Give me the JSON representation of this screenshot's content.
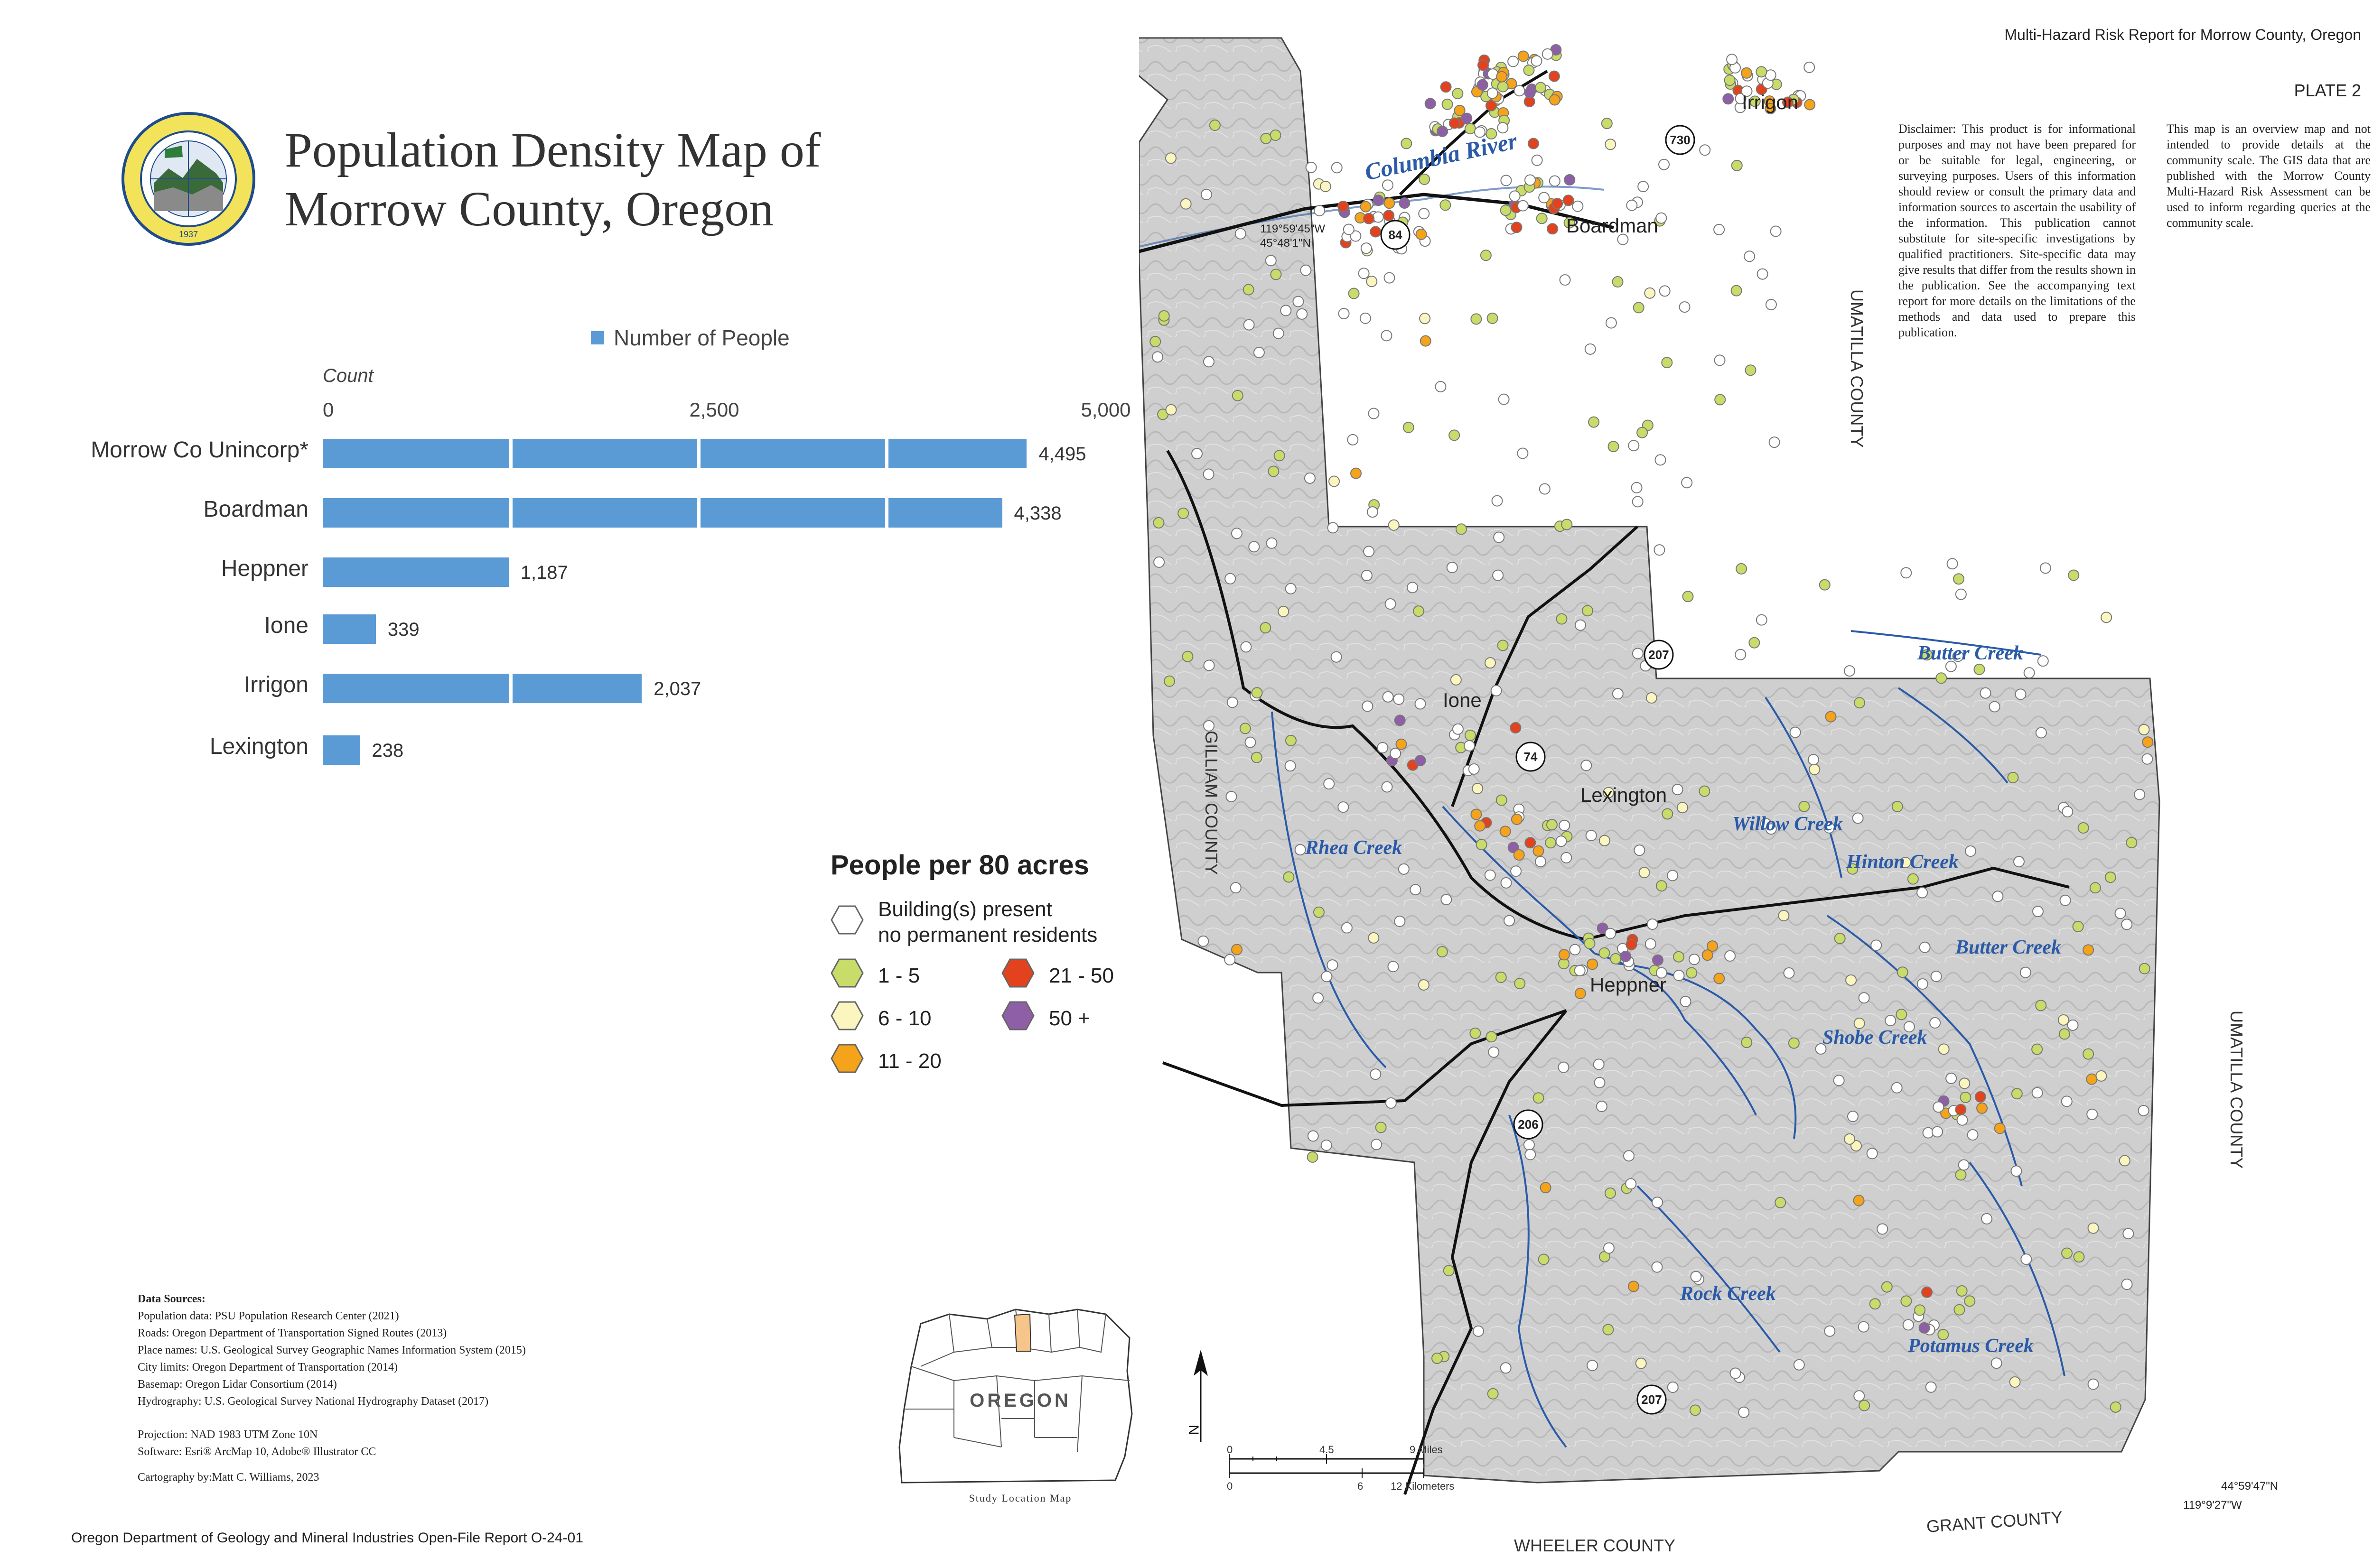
{
  "header": {
    "title_line1": "Population Density Map of",
    "title_line2": "Morrow County, Oregon",
    "report_title": "Multi-Hazard Risk Report for Morrow County, Oregon",
    "plate": "PLATE 2"
  },
  "seal": {
    "text": "OREGON DEPARTMENT OF GEOLOGY AND MINERAL INDUSTRIES",
    "year": "1937"
  },
  "chart_data": {
    "type": "bar",
    "orientation": "horizontal",
    "legend": "Number of People",
    "axis_title": "Count",
    "ticks": [
      "0",
      "2,500",
      "5,000"
    ],
    "xlim": [
      0,
      5000
    ],
    "categories": [
      "Morrow Co Unincorp*",
      "Boardman",
      "Heppner",
      "Ione",
      "Irrigon",
      "Lexington"
    ],
    "values": [
      4495,
      4338,
      1187,
      339,
      2037,
      238
    ],
    "value_labels": [
      "4,495",
      "4,338",
      "1,187",
      "339",
      "2,037",
      "238"
    ],
    "gridlines": [
      1200,
      2400,
      3600
    ]
  },
  "density_legend": {
    "title": "People per 80 acres",
    "items": [
      {
        "label_line1": "Building(s) present",
        "label_line2": "no permanent residents",
        "color": "#ffffff"
      },
      {
        "label": "1 - 5",
        "color": "#c8dc6a"
      },
      {
        "label": "6 - 10",
        "color": "#fbf6c0"
      },
      {
        "label": "11 - 20",
        "color": "#f5a31b"
      },
      {
        "label": "21 - 50",
        "color": "#e2431e"
      },
      {
        "label": "50 +",
        "color": "#8e5fa6"
      }
    ]
  },
  "sources": {
    "heading": "Data Sources:",
    "lines": [
      "Population data: PSU Population Research Center (2021)",
      "Roads: Oregon Department of Transportation Signed Routes (2013)",
      "Place names: U.S. Geological Survey Geographic Names Information System (2015)",
      "City limits: Oregon Department of Transportation (2014)",
      "Basemap: Oregon Lidar Consortium (2014)",
      "Hydrography: U.S. Geological Survey National Hydrography Dataset (2017)"
    ],
    "projection": "Projection: NAD 1983 UTM Zone 10N",
    "software": "Software: Esri® ArcMap 10, Adobe® Illustrator CC",
    "cartography": "Cartography by:Matt C. Williams, 2023"
  },
  "footer": "Oregon Department of Geology and Mineral Industries Open-File Report O-24-01",
  "inset": {
    "state_label": "OREGON",
    "caption": "Study Location Map",
    "highlight_color": "#f6c58a"
  },
  "disclaimer": "Disclaimer: This product is for informational purposes and may not have been prepared for or be suitable for legal, engineering, or surveying purposes. Users of this information should review or consult the primary data and information sources to ascertain the usability of the information. This publication cannot substitute for site-specific investigations by qualified practitioners. Site-specific data may give results that differ from the results shown in the publication. See the accompanying text report for more details on the limitations of the methods and data used to prepare this publication.",
  "overview_note": "This map is an overview map and not intended to provide details at the community scale. The GIS data that are published with the Morrow County Multi-Hazard Risk Assessment can be used to inform regarding queries at the community scale.",
  "map": {
    "places": [
      "Irrigon",
      "Boardman",
      "Ione",
      "Lexington",
      "Heppner"
    ],
    "water": [
      "Columbia River",
      "Butter Creek",
      "Willow Creek",
      "Rhea Creek",
      "Hinton Creek",
      "Butter Creek",
      "Shobe Creek",
      "Rock Creek",
      "Potamus Creek"
    ],
    "counties": [
      "UMATILLA COUNTY",
      "GILLIAM COUNTY",
      "UMATILLA COUNTY",
      "WHEELER COUNTY",
      "GRANT COUNTY"
    ],
    "routes": [
      "730",
      "84",
      "207",
      "74",
      "206",
      "207"
    ],
    "coords": [
      "119°59'45\"W",
      "45°48'1\"N",
      "44°59'47\"N",
      "119°9'27\"W"
    ],
    "north": "N",
    "scale_miles": [
      "0",
      "4.5",
      "9 Miles"
    ],
    "scale_km": [
      "0",
      "6",
      "12 Kilometers"
    ]
  }
}
